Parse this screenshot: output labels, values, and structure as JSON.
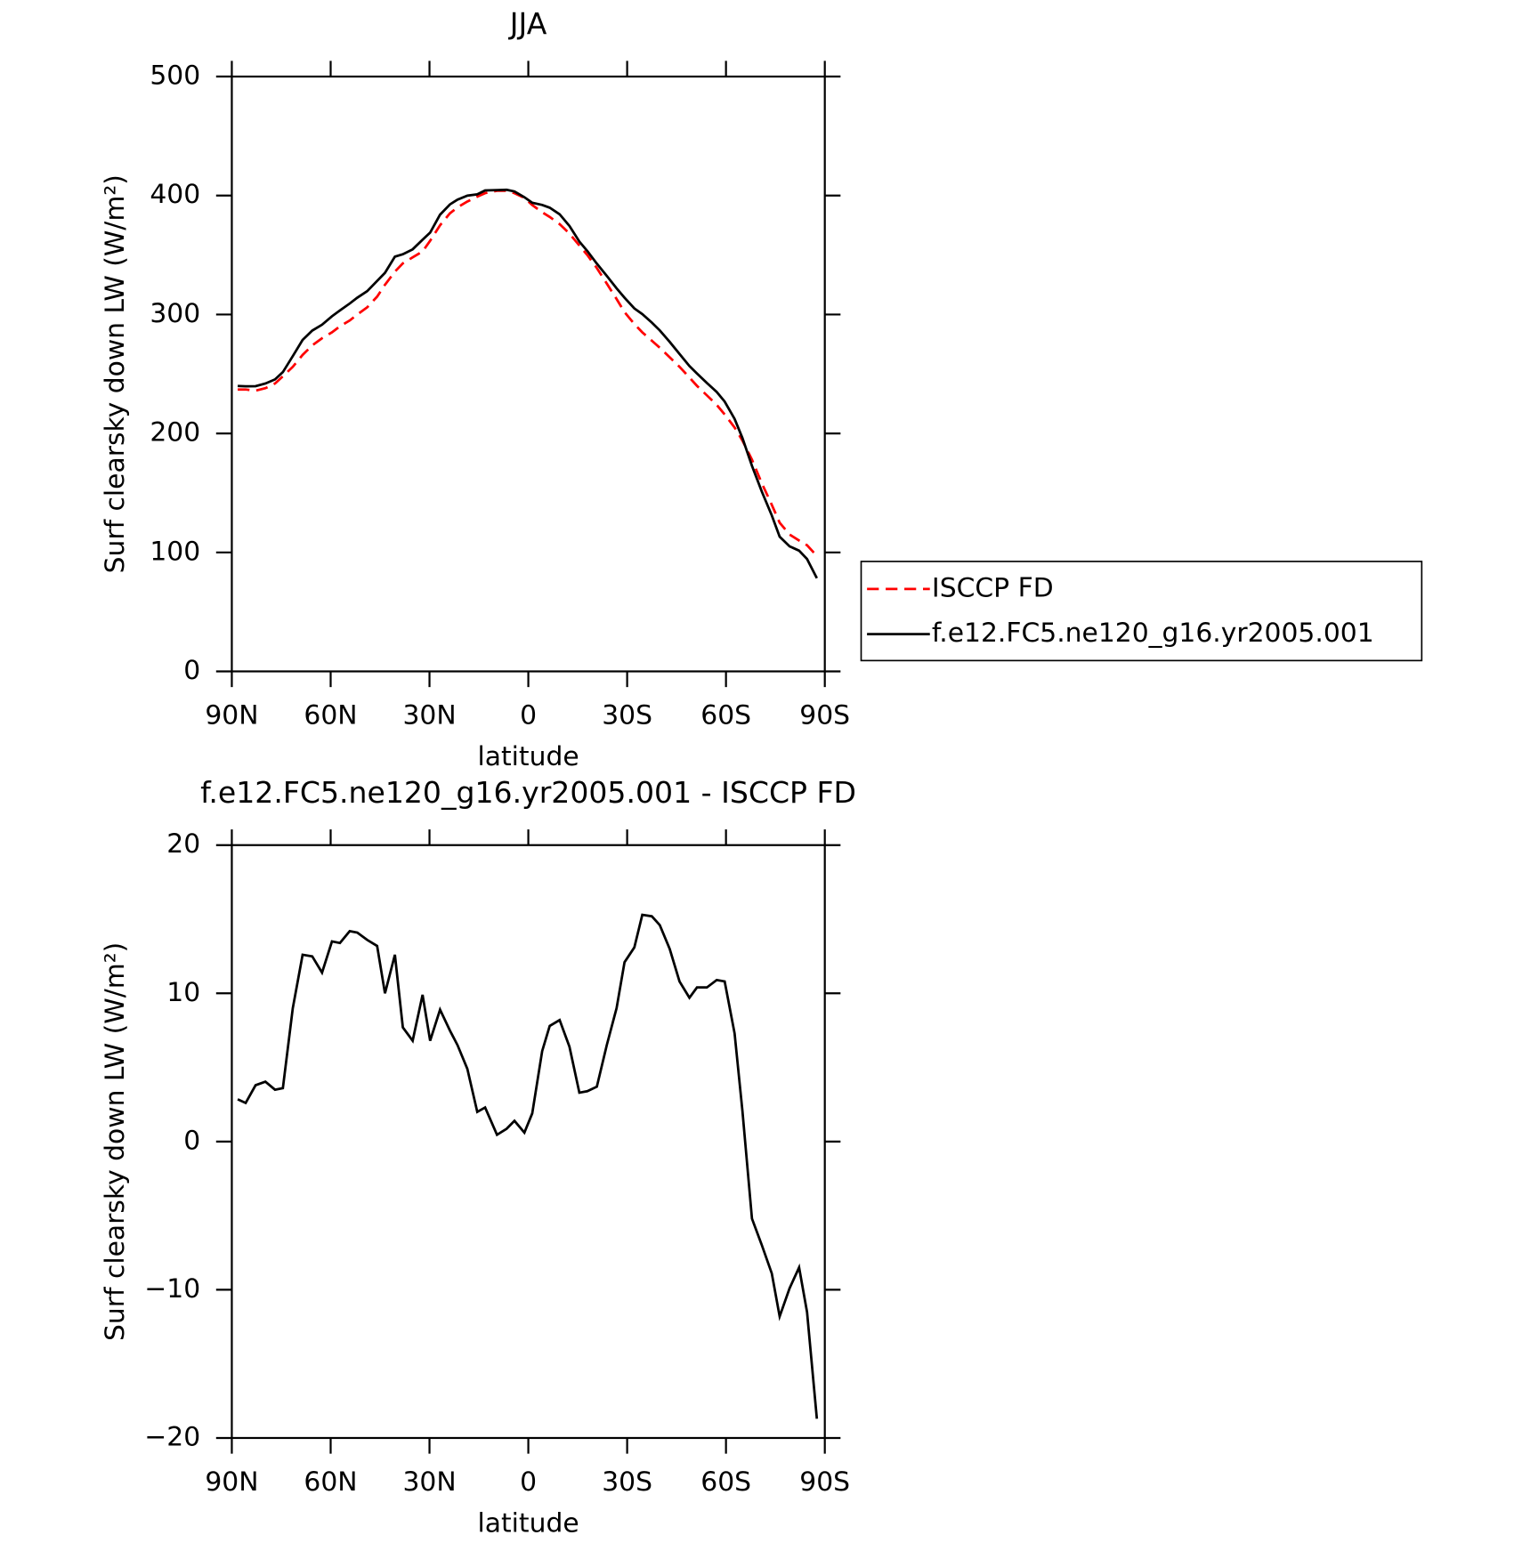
{
  "chart_data": [
    {
      "type": "line",
      "title": "JJA",
      "x_label": "latitude",
      "y_label": "Surf clearsky down LW (W/m²)",
      "x": [
        88.2,
        85.8,
        82.8,
        79.8,
        76.9,
        74.5,
        71.5,
        68.5,
        65.6,
        62.6,
        59.6,
        57.2,
        54.2,
        51.9,
        48.9,
        45.9,
        43.5,
        40.5,
        38.1,
        35.1,
        32.1,
        29.8,
        26.8,
        23.8,
        21.5,
        18.5,
        15.5,
        13.1,
        9.5,
        6.6,
        4.2,
        1.2,
        -1.2,
        -4.2,
        -6.5,
        -9.5,
        -12.5,
        -15.5,
        -17.9,
        -20.8,
        -23.8,
        -26.8,
        -29.2,
        -32.2,
        -34.6,
        -37.5,
        -39.9,
        -42.9,
        -45.9,
        -48.9,
        -51.2,
        -54.2,
        -57.2,
        -59.6,
        -62.6,
        -65.0,
        -67.9,
        -70.9,
        -73.9,
        -76.3,
        -79.3,
        -82.2,
        -84.6,
        -87.6
      ],
      "series": [
        {
          "name": "ISCCP FD",
          "color": "#ff0000",
          "dashed": true,
          "values": [
            237,
            237,
            236,
            238,
            242,
            248,
            256,
            266,
            274,
            280,
            285,
            290,
            295,
            300,
            306,
            315,
            325,
            336,
            343,
            348,
            353,
            362,
            375,
            385,
            390,
            395,
            399,
            402,
            404,
            404,
            402,
            398,
            392,
            386,
            382,
            376,
            368,
            358,
            350,
            339,
            326,
            313,
            302,
            292,
            285,
            278,
            272,
            264,
            256,
            247,
            240,
            232,
            224,
            216,
            205,
            194,
            178,
            158,
            140,
            125,
            115,
            110,
            106,
            97
          ]
        },
        {
          "name": "f.e12.FC5.ne120_g16.yr2005.001",
          "color": "#000000",
          "dashed": false,
          "values": [
            239.9,
            239.6,
            239.8,
            242.0,
            245.5,
            251.6,
            265.0,
            278.6,
            286.5,
            291.4,
            298.5,
            303.4,
            309.2,
            314.1,
            319.6,
            328.2,
            335.0,
            348.6,
            350.7,
            354.8,
            362.9,
            368.8,
            383.9,
            392.5,
            396.5,
            399.9,
            401.0,
            404.3,
            404.5,
            404.9,
            403.4,
            398.6,
            393.9,
            392.1,
            389.8,
            384.2,
            374.4,
            361.3,
            353.4,
            342.7,
            332.5,
            322.0,
            314.1,
            305.1,
            300.3,
            293.2,
            286.6,
            277.0,
            266.8,
            256.7,
            250.4,
            242.4,
            234.9,
            226.8,
            212.3,
            196.1,
            172.8,
            151.0,
            131.1,
            113.2,
            105.1,
            101.5,
            94.5,
            78.3
          ]
        }
      ],
      "xlim": [
        90,
        -90
      ],
      "xticks": [
        {
          "value": 90,
          "label": "90N"
        },
        {
          "value": 60,
          "label": "60N"
        },
        {
          "value": 30,
          "label": "30N"
        },
        0,
        {
          "value": -30,
          "label": "30S"
        },
        {
          "value": -60,
          "label": "60S"
        },
        {
          "value": -90,
          "label": "90S"
        }
      ],
      "ylim": [
        0,
        500
      ],
      "yticks": [
        0,
        100,
        200,
        300,
        400,
        500
      ],
      "legend": "outside-right"
    },
    {
      "type": "line",
      "title": "f.e12.FC5.ne120_g16.yr2005.001 - ISCCP FD",
      "x_label": "latitude",
      "y_label": "Surf clearsky down LW (W/m²)",
      "x": [
        88.2,
        85.8,
        82.8,
        79.8,
        76.9,
        74.5,
        71.5,
        68.5,
        65.6,
        62.6,
        59.6,
        57.2,
        54.2,
        51.9,
        48.9,
        45.9,
        43.5,
        40.5,
        38.1,
        35.1,
        32.1,
        29.8,
        26.8,
        23.8,
        21.5,
        18.5,
        15.5,
        13.1,
        9.5,
        6.6,
        4.2,
        1.2,
        -1.2,
        -4.2,
        -6.5,
        -9.5,
        -12.5,
        -15.5,
        -17.9,
        -20.8,
        -23.8,
        -26.8,
        -29.2,
        -32.2,
        -34.6,
        -37.5,
        -39.9,
        -42.9,
        -45.9,
        -48.9,
        -51.2,
        -54.2,
        -57.2,
        -59.6,
        -62.6,
        -65.0,
        -67.9,
        -70.9,
        -73.9,
        -76.3,
        -79.3,
        -82.2,
        -84.6,
        -87.6
      ],
      "series": [
        {
          "color": "#000000",
          "dashed": false,
          "values": [
            2.85,
            2.6,
            3.8,
            4.04,
            3.5,
            3.6,
            9.0,
            12.6,
            12.5,
            11.4,
            13.5,
            13.4,
            14.2,
            14.1,
            13.6,
            13.2,
            10.0,
            12.6,
            7.7,
            6.8,
            9.9,
            6.8,
            8.9,
            7.5,
            6.5,
            4.9,
            2.0,
            2.3,
            0.46,
            0.86,
            1.4,
            0.6,
            1.9,
            6.1,
            7.8,
            8.2,
            6.4,
            3.3,
            3.4,
            3.7,
            6.5,
            9.0,
            12.1,
            13.1,
            15.3,
            15.2,
            14.6,
            13.0,
            10.8,
            9.7,
            10.4,
            10.4,
            10.9,
            10.8,
            7.3,
            2.05,
            -5.2,
            -7.0,
            -8.9,
            -11.8,
            -9.9,
            -8.5,
            -11.5,
            -18.7
          ]
        }
      ],
      "xlim": [
        90,
        -90
      ],
      "xticks": [
        {
          "value": 90,
          "label": "90N"
        },
        {
          "value": 60,
          "label": "60N"
        },
        {
          "value": 30,
          "label": "30N"
        },
        0,
        {
          "value": -30,
          "label": "30S"
        },
        {
          "value": -60,
          "label": "60S"
        },
        {
          "value": -90,
          "label": "90S"
        }
      ],
      "ylim": [
        -20,
        20
      ],
      "yticks": [
        {
          "value": -20,
          "label": "−20"
        },
        {
          "value": -10,
          "label": "−10"
        },
        0,
        10,
        20
      ]
    }
  ]
}
